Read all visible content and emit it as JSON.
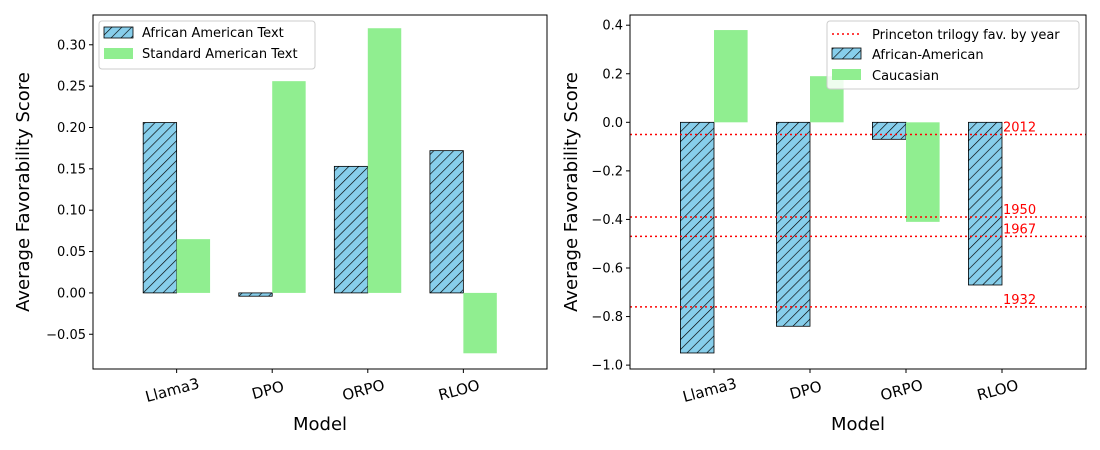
{
  "chart_data": [
    {
      "type": "bar",
      "categories": [
        "Llama3",
        "DPO",
        "ORPO",
        "RLOO"
      ],
      "series": [
        {
          "name": "African American Text",
          "values": [
            0.206,
            -0.004,
            0.153,
            0.172
          ],
          "color": "#87ceeb",
          "hatch": true
        },
        {
          "name": "Standard American Text",
          "values": [
            0.065,
            0.256,
            0.32,
            -0.073
          ],
          "color": "#90ee90",
          "hatch": false
        }
      ],
      "xlabel": "Model",
      "ylabel": "Average Favorability Score",
      "ylim": [
        -0.092,
        0.336
      ],
      "yticks": [
        -0.05,
        0.0,
        0.05,
        0.1,
        0.15,
        0.2,
        0.25,
        0.3
      ],
      "ytick_labels": [
        "−0.05",
        "0.00",
        "0.05",
        "0.10",
        "0.15",
        "0.20",
        "0.25",
        "0.30"
      ],
      "legend_position": "top-left"
    },
    {
      "type": "bar",
      "categories": [
        "Llama3",
        "DPO",
        "ORPO",
        "RLOO"
      ],
      "series": [
        {
          "name": "African-American",
          "values": [
            -0.95,
            -0.84,
            -0.07,
            -0.67
          ],
          "color": "#87ceeb",
          "hatch": true
        },
        {
          "name": "Caucasian",
          "values": [
            0.38,
            0.19,
            -0.41,
            0.0
          ],
          "color": "#90ee90",
          "hatch": false
        }
      ],
      "reference_lines": {
        "legend": "Princeton trilogy fav. by year",
        "color": "#ff0000",
        "lines": [
          {
            "label": "2012",
            "value": -0.05
          },
          {
            "label": "1950",
            "value": -0.39
          },
          {
            "label": "1967",
            "value": -0.47
          },
          {
            "label": "1932",
            "value": -0.76
          }
        ]
      },
      "xlabel": "Model",
      "ylabel": "Average Favorability Score",
      "ylim": [
        -1.016,
        0.442
      ],
      "yticks": [
        -1.0,
        -0.8,
        -0.6,
        -0.4,
        -0.2,
        0.0,
        0.2,
        0.4
      ],
      "ytick_labels": [
        "−1.0",
        "−0.8",
        "−0.6",
        "−0.4",
        "−0.2",
        "0.0",
        "0.2",
        "0.4"
      ],
      "legend_position": "top-right"
    }
  ]
}
